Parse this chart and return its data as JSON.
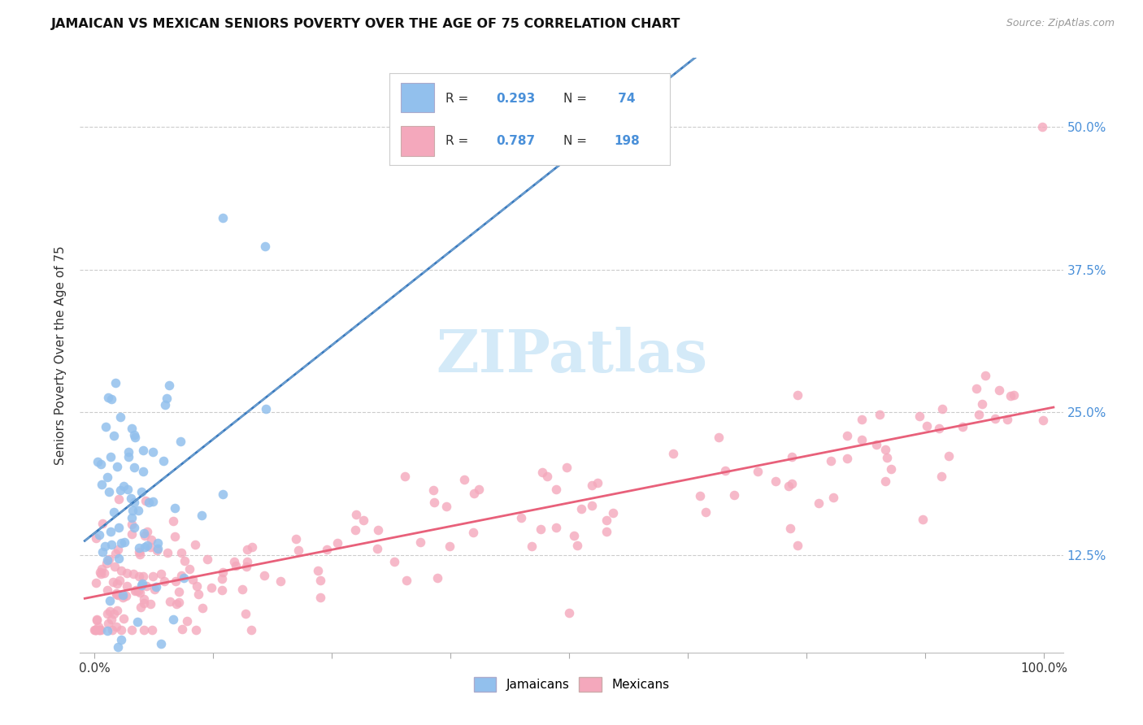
{
  "title": "JAMAICAN VS MEXICAN SENIORS POVERTY OVER THE AGE OF 75 CORRELATION CHART",
  "source": "Source: ZipAtlas.com",
  "ylabel": "Seniors Poverty Over the Age of 75",
  "ytick_labels": [
    "12.5%",
    "25.0%",
    "37.5%",
    "50.0%"
  ],
  "ytick_values": [
    0.125,
    0.25,
    0.375,
    0.5
  ],
  "legend_r1": "0.293",
  "legend_n1": "74",
  "legend_r2": "0.787",
  "legend_n2": "198",
  "watermark_text": "ZIPatlas",
  "blue_color": "#92c0ed",
  "pink_color": "#f4a8bc",
  "blue_line_color": "#3a7abf",
  "pink_line_color": "#e8607a",
  "text_color": "#333333",
  "axis_label_color": "#4a90d9",
  "grid_color": "#cccccc",
  "watermark_color": "#d0e8f8",
  "source_color": "#999999"
}
